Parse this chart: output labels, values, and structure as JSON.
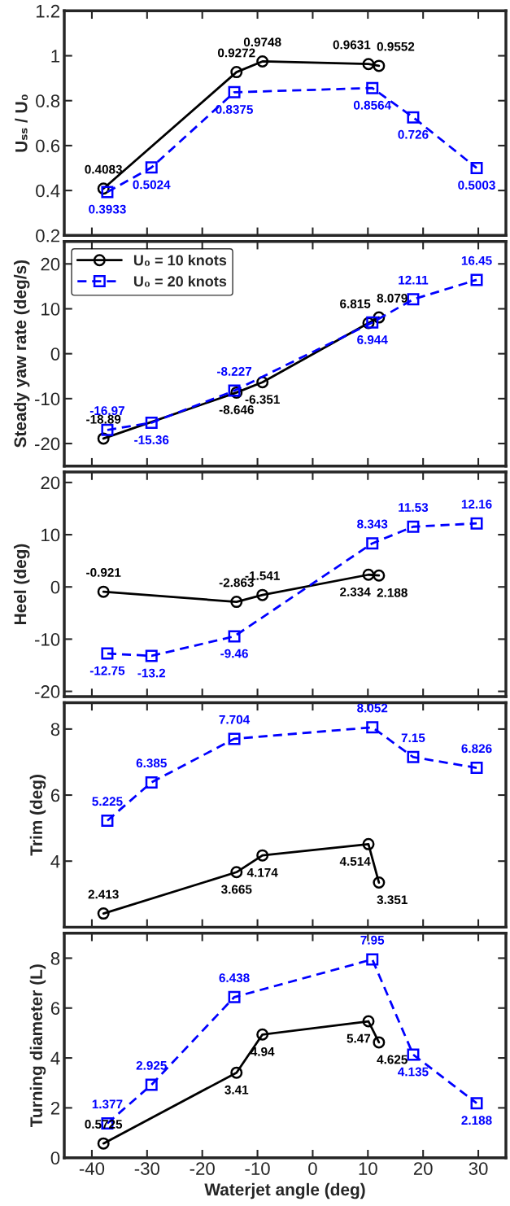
{
  "chart_data": [
    {
      "type": "line",
      "ylabel": "Uₛₛ / U₀",
      "xlim": [
        -45,
        35
      ],
      "xticks": [
        -40,
        -30,
        -20,
        -10,
        0,
        10,
        20,
        30
      ],
      "ylim": [
        0.2,
        1.2
      ],
      "yticks": [
        0.2,
        0.4,
        0.6,
        0.8,
        1,
        1.2
      ],
      "tick_labels": "y",
      "data_labels": true,
      "grid": false,
      "legend": false,
      "series": [
        {
          "color": "#000000",
          "marker": "circle",
          "line_style": "solid",
          "x": [
            -37.9,
            -13.8,
            -9.1,
            10.1,
            12.0
          ],
          "values": [
            0.4083,
            0.9272,
            0.9748,
            0.9631,
            0.9552
          ]
        },
        {
          "color": "#0000ff",
          "marker": "square",
          "line_style": "dashed",
          "x": [
            -37.2,
            -29.2,
            -14.2,
            10.8,
            18.2,
            29.7
          ],
          "values": [
            0.3933,
            0.5024,
            0.8375,
            0.8564,
            0.726,
            0.5003
          ]
        }
      ]
    },
    {
      "type": "line",
      "ylabel": "Steady yaw rate (deg/s)",
      "xlim": [
        -45,
        35
      ],
      "xticks": [
        -40,
        -30,
        -20,
        -10,
        0,
        10,
        20,
        30
      ],
      "ylim": [
        -25,
        25
      ],
      "yticks": [
        -20,
        -10,
        0,
        10,
        20
      ],
      "tick_labels": "y",
      "data_labels": true,
      "grid": false,
      "legend": "top left",
      "series": [
        {
          "name": "U₀ = 10 knots",
          "color": "#000000",
          "marker": "circle",
          "line_style": "solid",
          "x": [
            -37.9,
            -13.8,
            -9.1,
            10.1,
            12.0
          ],
          "values": [
            -18.89,
            -8.646,
            -6.351,
            6.815,
            8.079
          ]
        },
        {
          "name": "U₀ = 20 knots",
          "color": "#0000ff",
          "marker": "square",
          "line_style": "dashed",
          "x": [
            -37.2,
            -29.2,
            -14.2,
            10.8,
            18.2,
            29.7
          ],
          "values": [
            -16.97,
            -15.36,
            -8.227,
            6.944,
            12.11,
            16.45
          ]
        }
      ]
    },
    {
      "type": "line",
      "ylabel": "Heel (deg)",
      "xlim": [
        -45,
        35
      ],
      "xticks": [
        -40,
        -30,
        -20,
        -10,
        0,
        10,
        20,
        30
      ],
      "ylim": [
        -21,
        22
      ],
      "yticks": [
        -20,
        -10,
        0,
        10,
        20
      ],
      "tick_labels": "y",
      "data_labels": true,
      "grid": false,
      "legend": false,
      "series": [
        {
          "color": "#000000",
          "marker": "circle",
          "line_style": "solid",
          "x": [
            -37.9,
            -13.8,
            -9.1,
            10.1,
            12.0
          ],
          "values": [
            -0.921,
            -2.863,
            -1.541,
            2.334,
            2.188
          ]
        },
        {
          "color": "#0000ff",
          "marker": "square",
          "line_style": "dashed",
          "x": [
            -37.2,
            -29.2,
            -14.2,
            10.8,
            18.2,
            29.7
          ],
          "values": [
            -12.75,
            -13.2,
            -9.46,
            8.343,
            11.53,
            12.16
          ]
        }
      ]
    },
    {
      "type": "line",
      "ylabel": "Trim (deg)",
      "xlim": [
        -45,
        35
      ],
      "xticks": [
        -40,
        -30,
        -20,
        -10,
        0,
        10,
        20,
        30
      ],
      "ylim": [
        2,
        8.8
      ],
      "yticks": [
        4,
        6,
        8
      ],
      "tick_labels": "y",
      "data_labels": true,
      "grid": false,
      "legend": false,
      "series": [
        {
          "color": "#000000",
          "marker": "circle",
          "line_style": "solid",
          "x": [
            -37.9,
            -13.8,
            -9.1,
            10.1,
            12.0
          ],
          "values": [
            2.413,
            3.665,
            4.174,
            4.514,
            3.351
          ]
        },
        {
          "color": "#0000ff",
          "marker": "square",
          "line_style": "dashed",
          "x": [
            -37.2,
            -29.2,
            -14.2,
            10.8,
            18.2,
            29.7
          ],
          "values": [
            5.225,
            6.385,
            7.704,
            8.052,
            7.15,
            6.826
          ]
        }
      ]
    },
    {
      "type": "line",
      "ylabel": "Turning diameter (L)",
      "xlabel": "Waterjet angle (deg)",
      "xlim": [
        -45,
        35
      ],
      "xticks": [
        -40,
        -30,
        -20,
        -10,
        0,
        10,
        20,
        30
      ],
      "ylim": [
        0,
        9
      ],
      "yticks": [
        0,
        2,
        4,
        6,
        8
      ],
      "data_labels": true,
      "grid": false,
      "legend": false,
      "series": [
        {
          "color": "#000000",
          "marker": "circle",
          "line_style": "solid",
          "x": [
            -37.9,
            -13.8,
            -9.1,
            10.1,
            12.0
          ],
          "values": [
            0.5725,
            3.41,
            4.94,
            5.47,
            4.625
          ]
        },
        {
          "color": "#0000ff",
          "marker": "square",
          "line_style": "dashed",
          "x": [
            -37.2,
            -29.2,
            -14.2,
            10.8,
            18.2,
            29.7
          ],
          "values": [
            1.377,
            2.925,
            6.438,
            7.95,
            4.135,
            2.188
          ]
        }
      ]
    }
  ]
}
